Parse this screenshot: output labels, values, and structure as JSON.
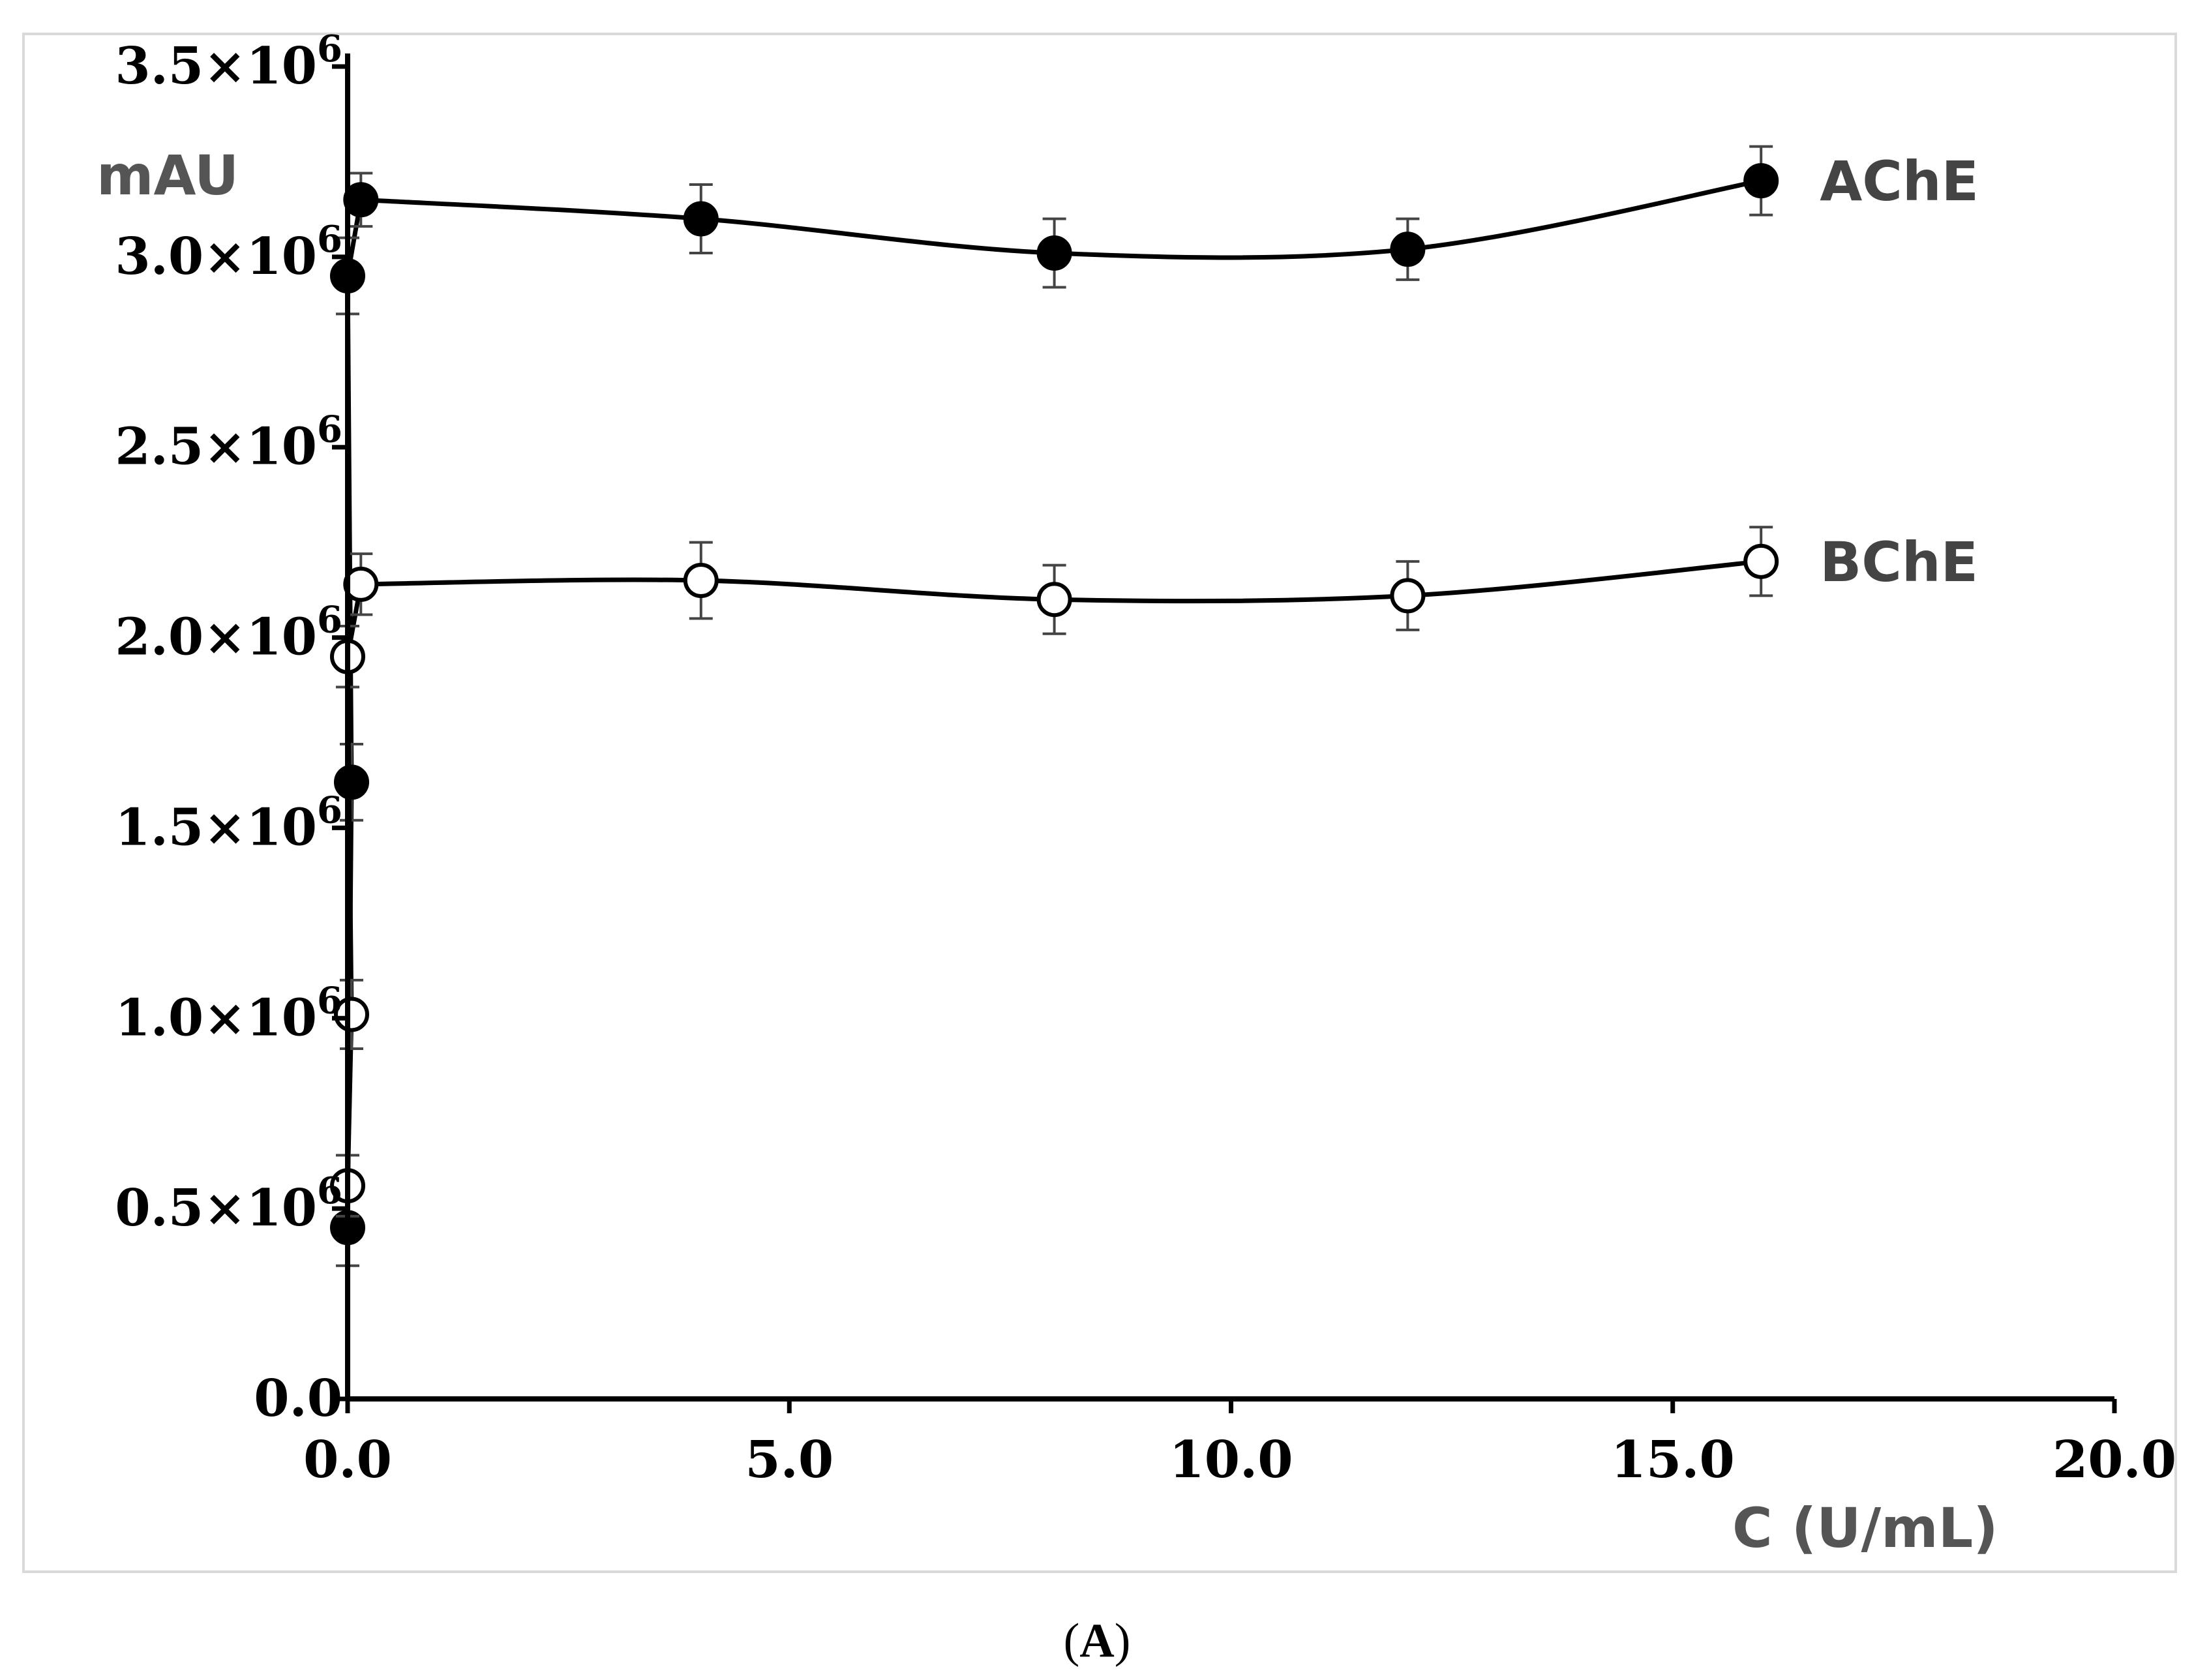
{
  "panel_label": {
    "open": "(",
    "letter": "A",
    "close": ")"
  },
  "chart_data": {
    "type": "line",
    "ylabel": "mAU",
    "xlabel": "C (U/mL)",
    "xlim": [
      0,
      20
    ],
    "ylim": [
      0,
      3500000
    ],
    "xticks": [
      {
        "value": 0,
        "label": "0.0"
      },
      {
        "value": 5,
        "label": "5.0"
      },
      {
        "value": 10,
        "label": "10.0"
      },
      {
        "value": 15,
        "label": "15.0"
      },
      {
        "value": 20,
        "label": "20.0"
      }
    ],
    "yticks": [
      {
        "value": 0,
        "mantissa": "0.0",
        "times": "",
        "base": "",
        "exp": ""
      },
      {
        "value": 500000,
        "mantissa": "0.5",
        "times": "×",
        "base": "10",
        "exp": "6"
      },
      {
        "value": 1000000,
        "mantissa": "1.0",
        "times": "×",
        "base": "10",
        "exp": "6"
      },
      {
        "value": 1500000,
        "mantissa": "1.5",
        "times": "×",
        "base": "10",
        "exp": "6"
      },
      {
        "value": 2000000,
        "mantissa": "2.0",
        "times": "×",
        "base": "10",
        "exp": "6"
      },
      {
        "value": 2500000,
        "mantissa": "2.5",
        "times": "×",
        "base": "10",
        "exp": "6"
      },
      {
        "value": 3000000,
        "mantissa": "3.0",
        "times": "×",
        "base": "10",
        "exp": "6"
      },
      {
        "value": 3500000,
        "mantissa": "3.5",
        "times": "×",
        "base": "10",
        "exp": "6"
      }
    ],
    "series": [
      {
        "name": "AChE",
        "marker": "filled",
        "color": "#000000",
        "x": [
          0.0,
          0.0,
          0.0,
          0.15,
          4.0,
          8.0,
          12.0,
          16.0
        ],
        "y": [
          450000,
          1620000,
          2950000,
          3150000,
          3100000,
          3010000,
          3020000,
          3200000
        ],
        "err": [
          100000,
          100000,
          100000,
          70000,
          90000,
          90000,
          80000,
          90000
        ]
      },
      {
        "name": "BChE",
        "marker": "open",
        "color": "#000000",
        "x": [
          0.0,
          0.0,
          0.0,
          0.15,
          4.0,
          8.0,
          12.0,
          16.0
        ],
        "y": [
          560000,
          1010000,
          1950000,
          2140000,
          2150000,
          2100000,
          2110000,
          2200000
        ],
        "err": [
          80000,
          90000,
          80000,
          80000,
          100000,
          90000,
          90000,
          90000
        ]
      }
    ]
  }
}
